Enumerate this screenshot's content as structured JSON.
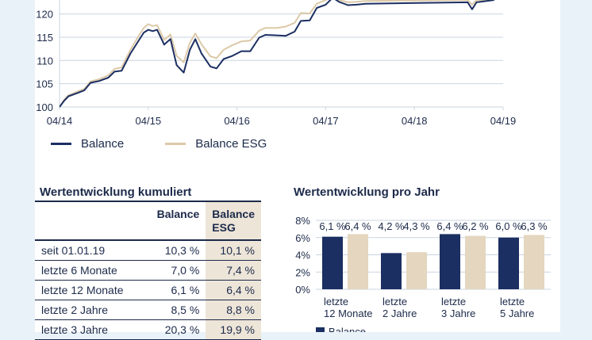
{
  "chart_data": [
    {
      "type": "line",
      "title": "",
      "xlabel": "",
      "ylabel": "",
      "x_ticks": [
        "04/14",
        "04/15",
        "04/16",
        "04/17",
        "04/18",
        "04/19"
      ],
      "x_range": [
        0,
        5
      ],
      "y_ticks": [
        "100",
        "105",
        "110",
        "115",
        "120"
      ],
      "ylim": [
        100,
        123
      ],
      "grid": true,
      "legend": "bottom-left",
      "series": [
        {
          "name": "Balance",
          "color": "#1c2f62",
          "points": [
            [
              0,
              100
            ],
            [
              0.05,
              101.3
            ],
            [
              0.1,
              102.3
            ],
            [
              0.2,
              103.0
            ],
            [
              0.28,
              103.6
            ],
            [
              0.35,
              105.2
            ],
            [
              0.45,
              105.6
            ],
            [
              0.55,
              106.3
            ],
            [
              0.62,
              107.6
            ],
            [
              0.7,
              107.8
            ],
            [
              0.8,
              111.5
            ],
            [
              0.9,
              114.5
            ],
            [
              0.95,
              116.0
            ],
            [
              1.0,
              116.6
            ],
            [
              1.05,
              116.3
            ],
            [
              1.1,
              116.6
            ],
            [
              1.18,
              113.4
            ],
            [
              1.25,
              114.6
            ],
            [
              1.32,
              109.0
            ],
            [
              1.4,
              107.4
            ],
            [
              1.47,
              112.3
            ],
            [
              1.53,
              114.6
            ],
            [
              1.6,
              111.5
            ],
            [
              1.7,
              108.7
            ],
            [
              1.77,
              108.3
            ],
            [
              1.85,
              110.3
            ],
            [
              1.95,
              111.0
            ],
            [
              2.05,
              112.0
            ],
            [
              2.15,
              112.0
            ],
            [
              2.25,
              114.9
            ],
            [
              2.32,
              115.5
            ],
            [
              2.45,
              115.4
            ],
            [
              2.55,
              115.3
            ],
            [
              2.65,
              116.2
            ],
            [
              2.72,
              118.5
            ],
            [
              2.82,
              118.6
            ],
            [
              2.9,
              121.3
            ],
            [
              3.0,
              122.0
            ],
            [
              3.08,
              123.5
            ],
            [
              3.15,
              122.6
            ],
            [
              3.25,
              121.9
            ],
            [
              3.35,
              122.0
            ],
            [
              3.45,
              122.2
            ],
            [
              4.6,
              122.5
            ],
            [
              4.65,
              121.0
            ],
            [
              4.7,
              122.5
            ],
            [
              4.9,
              123.0
            ]
          ]
        },
        {
          "name": "Balance ESG",
          "color": "#dcc9a8",
          "points": [
            [
              0,
              100
            ],
            [
              0.05,
              101.5
            ],
            [
              0.1,
              102.5
            ],
            [
              0.2,
              103.3
            ],
            [
              0.28,
              103.9
            ],
            [
              0.35,
              105.5
            ],
            [
              0.45,
              106.0
            ],
            [
              0.55,
              106.8
            ],
            [
              0.62,
              108.2
            ],
            [
              0.7,
              108.5
            ],
            [
              0.8,
              112.3
            ],
            [
              0.9,
              115.5
            ],
            [
              0.95,
              117.0
            ],
            [
              1.0,
              117.8
            ],
            [
              1.05,
              117.4
            ],
            [
              1.1,
              117.6
            ],
            [
              1.18,
              114.4
            ],
            [
              1.25,
              115.6
            ],
            [
              1.32,
              111.0
            ],
            [
              1.4,
              109.6
            ],
            [
              1.47,
              113.8
            ],
            [
              1.53,
              115.8
            ],
            [
              1.6,
              113.5
            ],
            [
              1.7,
              110.9
            ],
            [
              1.77,
              110.5
            ],
            [
              1.85,
              112.3
            ],
            [
              1.95,
              113.3
            ],
            [
              2.05,
              114.1
            ],
            [
              2.15,
              114.3
            ],
            [
              2.25,
              116.4
            ],
            [
              2.32,
              117.0
            ],
            [
              2.45,
              117.0
            ],
            [
              2.55,
              117.3
            ],
            [
              2.65,
              118.1
            ],
            [
              2.72,
              120.2
            ],
            [
              2.82,
              120.1
            ],
            [
              2.9,
              122.2
            ],
            [
              3.0,
              123.0
            ],
            [
              3.08,
              123.5
            ],
            [
              3.15,
              123.0
            ],
            [
              3.25,
              122.5
            ],
            [
              3.35,
              122.6
            ],
            [
              3.45,
              122.8
            ],
            [
              4.6,
              123.0
            ],
            [
              4.65,
              122.0
            ],
            [
              4.7,
              123.0
            ],
            [
              4.9,
              123.0
            ]
          ]
        }
      ]
    },
    {
      "type": "table",
      "title": "Wertentwicklung kumuliert",
      "columns": [
        "",
        "Balance",
        "Balance ESG"
      ],
      "column_lines": [
        [
          "",
          ""
        ],
        [
          "Balance",
          ""
        ],
        [
          "Balance",
          "ESG"
        ]
      ],
      "rows": [
        [
          "seit 01.01.19",
          "10,3 %",
          "10,1 %"
        ],
        [
          "letzte 6 Monate",
          "7,0 %",
          "7,4 %"
        ],
        [
          "letzte 12 Monate",
          "6,1 %",
          "6,4 %"
        ],
        [
          "letzte 2 Jahre",
          "8,5 %",
          "8,8 %"
        ],
        [
          "letzte 3 Jahre",
          "20,3 %",
          "19,9 %"
        ]
      ]
    },
    {
      "type": "bar",
      "title": "Wertentwicklung pro Jahr",
      "categories": [
        "letzte 12 Monate",
        "letzte 2 Jahre",
        "letzte 3 Jahre",
        "letzte 5 Jahre"
      ],
      "category_lines": [
        [
          "letzte",
          "12 Monate"
        ],
        [
          "letzte",
          "2 Jahre"
        ],
        [
          "letzte",
          "3 Jahre"
        ],
        [
          "letzte",
          "5 Jahre"
        ]
      ],
      "y_ticks": [
        "0%",
        "2%",
        "4%",
        "6%",
        "8%"
      ],
      "ylim": [
        0,
        8
      ],
      "grid": true,
      "legend": "bottom",
      "series": [
        {
          "name": "Balance",
          "color": "#1c2f62",
          "values": [
            6.1,
            4.2,
            6.4,
            6.0
          ],
          "labels": [
            "6,1 %",
            "4,2 %",
            "6,4 %",
            "6,0 %"
          ]
        },
        {
          "name": "Balance ESG",
          "color": "#e4d6bf",
          "values": [
            6.4,
            4.3,
            6.2,
            6.3
          ],
          "labels": [
            "6,4 %",
            "4,3 %",
            "6,2 %",
            "6,3 %"
          ]
        }
      ]
    }
  ]
}
